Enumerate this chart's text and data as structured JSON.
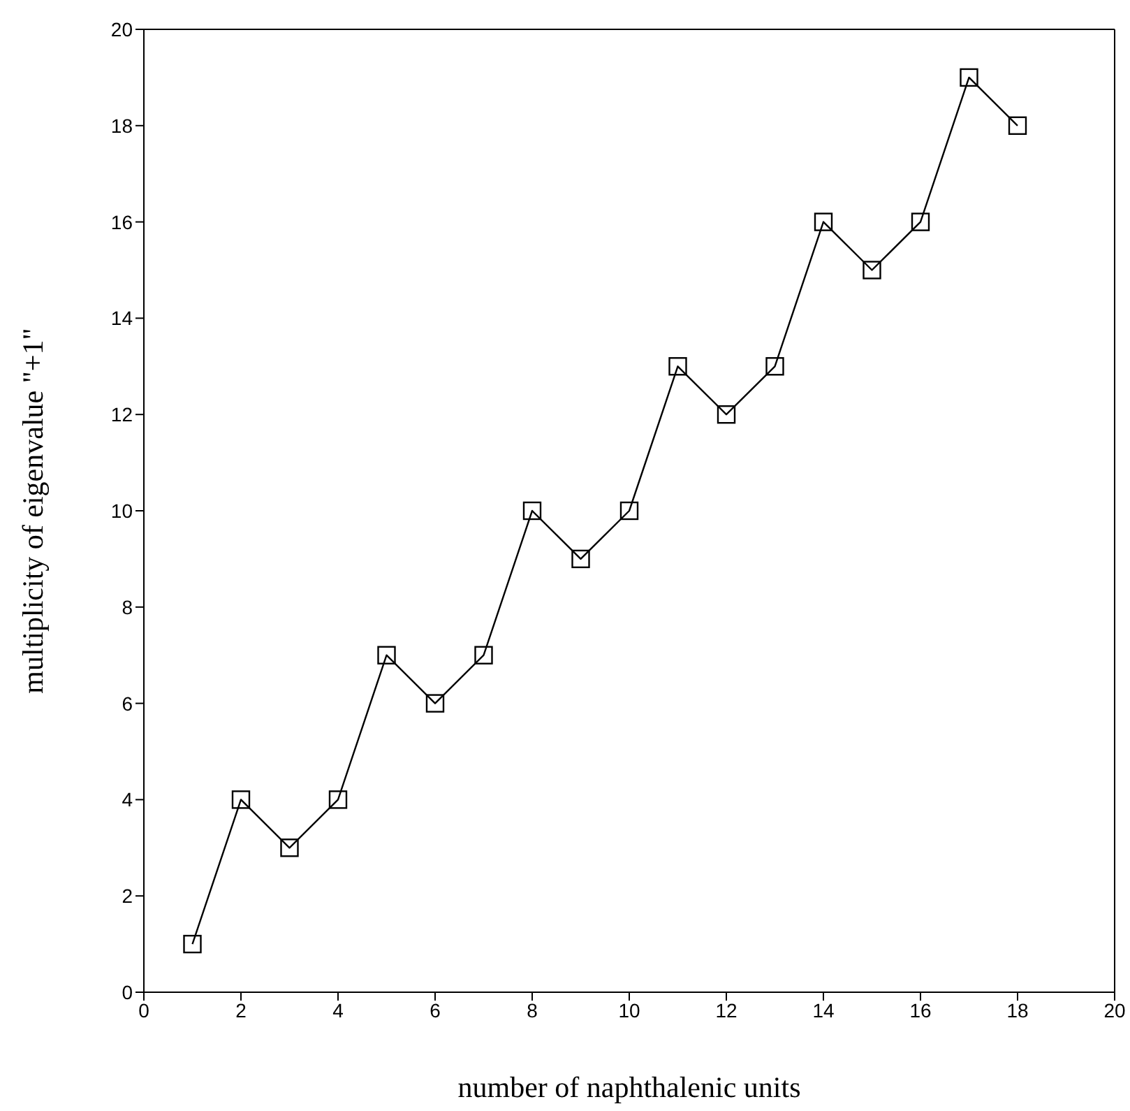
{
  "chart_data": {
    "type": "line",
    "xlabel": "number of naphthalenic units",
    "ylabel": "multiplicity of eigenvalue \"+1\"",
    "x": [
      1,
      2,
      3,
      4,
      5,
      6,
      7,
      8,
      9,
      10,
      11,
      12,
      13,
      14,
      15,
      16,
      17,
      18
    ],
    "series": [
      {
        "color": "#000000",
        "values": [
          1,
          4,
          3,
          4,
          7,
          6,
          7,
          10,
          9,
          10,
          13,
          12,
          13,
          16,
          15,
          16,
          19,
          18
        ]
      }
    ],
    "xlim": [
      0,
      20
    ],
    "xticks": [
      0,
      2,
      4,
      6,
      8,
      10,
      12,
      14,
      16,
      18,
      20
    ],
    "ylim": [
      0,
      20
    ],
    "yticks": [
      0,
      2,
      4,
      6,
      8,
      10,
      12,
      14,
      16,
      18,
      20
    ],
    "grid": false,
    "legend": false,
    "marker": "square",
    "line_style": "solid"
  }
}
